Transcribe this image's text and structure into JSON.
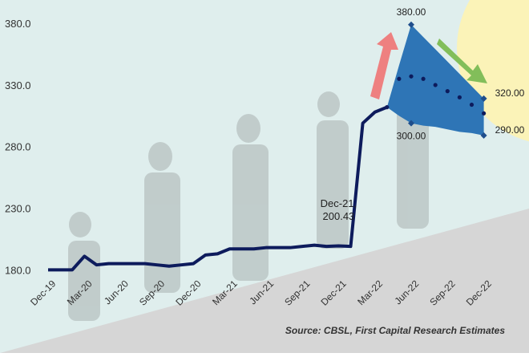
{
  "chart_data": {
    "type": "line",
    "source": "Source: CBSL, First Capital Research Estimates",
    "annotation": "Dec-21,",
    "categories": [
      "Dec-19",
      null,
      null,
      "Mar-20",
      null,
      null,
      "Jun-20",
      null,
      null,
      "Sep-20",
      null,
      null,
      "Dec-20",
      null,
      null,
      "Mar-21",
      null,
      null,
      "Jun-21",
      null,
      null,
      "Sep-21",
      null,
      null,
      "Dec-21",
      null,
      null,
      "Mar-22",
      null,
      null,
      "Jun-22",
      null,
      null,
      "Sep-22",
      null,
      null,
      "Dec-22"
    ],
    "series": [
      {
        "color": "#0d1b5c",
        "style": "solid",
        "values": [
          181,
          181,
          181,
          192,
          185,
          186,
          186,
          186,
          186,
          185,
          184,
          185,
          186,
          193,
          194,
          198,
          198,
          198,
          199,
          199,
          199,
          200,
          201,
          200,
          200.43,
          200,
          300,
          309,
          313,
          null,
          null,
          null,
          null,
          null,
          null,
          null,
          null
        ],
        "value_labels": [
          null,
          null,
          null,
          null,
          null,
          null,
          null,
          null,
          null,
          null,
          null,
          null,
          null,
          null,
          null,
          null,
          null,
          null,
          null,
          null,
          null,
          null,
          null,
          null,
          "200.43",
          null,
          null,
          null,
          null,
          null,
          null,
          null,
          null,
          null,
          null,
          null,
          null
        ]
      },
      {
        "color": "#0d1b5c",
        "style": "dotted",
        "values": [
          null,
          null,
          null,
          null,
          null,
          null,
          null,
          null,
          null,
          null,
          null,
          null,
          null,
          null,
          null,
          null,
          null,
          null,
          null,
          null,
          null,
          null,
          null,
          null,
          null,
          null,
          null,
          null,
          313,
          336,
          338,
          336,
          331,
          326,
          321,
          315,
          308
        ]
      },
      {
        "color": "#2e75b6",
        "style": "band-upper",
        "values": [
          null,
          null,
          null,
          null,
          null,
          null,
          null,
          null,
          null,
          null,
          null,
          null,
          null,
          null,
          null,
          null,
          null,
          null,
          null,
          null,
          null,
          null,
          null,
          null,
          null,
          null,
          null,
          null,
          313,
          347,
          380,
          370,
          360,
          350,
          340,
          330,
          320
        ],
        "value_labels": [
          null,
          null,
          null,
          null,
          null,
          null,
          null,
          null,
          null,
          null,
          null,
          null,
          null,
          null,
          null,
          null,
          null,
          null,
          null,
          null,
          null,
          null,
          null,
          null,
          null,
          null,
          null,
          null,
          null,
          null,
          "380.00",
          null,
          null,
          null,
          null,
          null,
          "320.00"
        ]
      },
      {
        "color": "#2e75b6",
        "style": "band-lower",
        "values": [
          null,
          null,
          null,
          null,
          null,
          null,
          null,
          null,
          null,
          null,
          null,
          null,
          null,
          null,
          null,
          null,
          null,
          null,
          null,
          null,
          null,
          null,
          null,
          null,
          null,
          null,
          null,
          null,
          313,
          306,
          300,
          298,
          297,
          295,
          293,
          292,
          290
        ],
        "value_labels": [
          null,
          null,
          null,
          null,
          null,
          null,
          null,
          null,
          null,
          null,
          null,
          null,
          null,
          null,
          null,
          null,
          null,
          null,
          null,
          null,
          null,
          null,
          null,
          null,
          null,
          null,
          null,
          null,
          null,
          null,
          "300.00",
          null,
          null,
          null,
          null,
          null,
          "290.00"
        ]
      }
    ],
    "ylim": [
      120,
      400
    ],
    "yticks": [
      {
        "value": 180,
        "label": "180.0"
      },
      {
        "value": 230,
        "label": "230.0"
      },
      {
        "value": 280,
        "label": "280.0"
      },
      {
        "value": 330,
        "label": "330.0"
      },
      {
        "value": 380,
        "label": "380.0"
      }
    ]
  }
}
